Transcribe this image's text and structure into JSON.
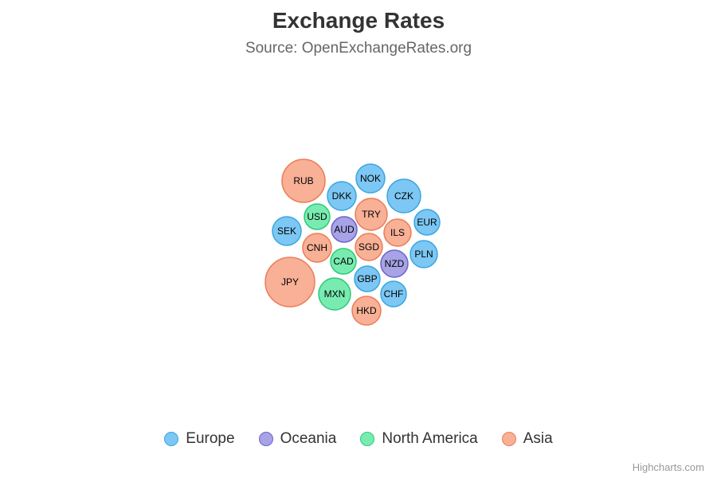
{
  "chart_data": {
    "type": "packedbubble",
    "title": "Exchange Rates",
    "subtitle": "Source: OpenExchangeRates.org",
    "legend_placement": "bottom-center",
    "credits": "Highcharts.com",
    "series": [
      {
        "name": "Europe",
        "color": "#7cc7f3",
        "border": "#3aa6e0",
        "points": [
          "NOK",
          "DKK",
          "CZK",
          "EUR",
          "SEK",
          "PLN",
          "GBP",
          "CHF"
        ]
      },
      {
        "name": "Oceania",
        "color": "#a8a2e6",
        "border": "#6c63c9",
        "points": [
          "AUD",
          "NZD"
        ]
      },
      {
        "name": "North America",
        "color": "#78ecb0",
        "border": "#2ec978",
        "points": [
          "USD",
          "CAD",
          "MXN"
        ]
      },
      {
        "name": "Asia",
        "color": "#f8b096",
        "border": "#ec7d55",
        "points": [
          "RUB",
          "TRY",
          "ILS",
          "CNH",
          "SGD",
          "JPY",
          "HKD"
        ]
      }
    ]
  }
}
